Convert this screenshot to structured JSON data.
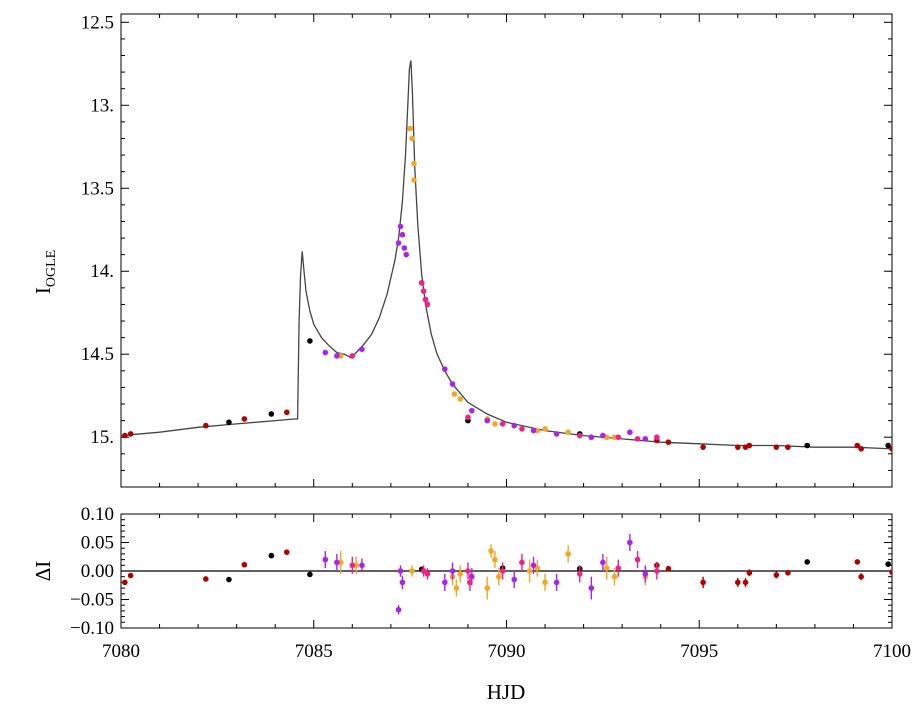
{
  "chart_data": [
    {
      "type": "scatter",
      "title": "",
      "xlabel": "HJD",
      "ylabel": "I",
      "ylabel_sub": "OGLE",
      "xlim": [
        7080,
        7100
      ],
      "ylim": [
        15.3,
        12.45
      ],
      "y_inverted": true,
      "x_ticks": [
        "7080",
        "7085",
        "7090",
        "7095",
        "7100"
      ],
      "y_ticks": [
        {
          "value": 12.5,
          "label": "12.5"
        },
        {
          "value": 13.0,
          "label": "13."
        },
        {
          "value": 13.5,
          "label": "13.5"
        },
        {
          "value": 14.0,
          "label": "14."
        },
        {
          "value": 14.5,
          "label": "14.5"
        },
        {
          "value": 15.0,
          "label": "15."
        }
      ],
      "grid": false,
      "series": [
        {
          "color": "#000000",
          "points": [
            [
              7082.8,
              14.91
            ],
            [
              7083.9,
              14.86
            ],
            [
              7084.9,
              14.42
            ],
            [
              7087.8,
              14.07
            ],
            [
              7089.0,
              14.9
            ],
            [
              7091.9,
              14.98
            ],
            [
              7097.8,
              15.05
            ],
            [
              7099.9,
              15.05
            ]
          ]
        },
        {
          "color": "#b00000",
          "points": [
            [
              7080.1,
              14.99
            ],
            [
              7080.25,
              14.98
            ],
            [
              7082.2,
              14.93
            ],
            [
              7083.2,
              14.89
            ],
            [
              7084.3,
              14.85
            ],
            [
              7093.9,
              15.02
            ],
            [
              7094.2,
              15.03
            ],
            [
              7095.1,
              15.06
            ],
            [
              7096.0,
              15.06
            ],
            [
              7096.2,
              15.06
            ],
            [
              7096.3,
              15.05
            ],
            [
              7097.0,
              15.06
            ],
            [
              7097.3,
              15.06
            ],
            [
              7099.1,
              15.05
            ],
            [
              7099.2,
              15.07
            ],
            [
              7100.0,
              15.07
            ]
          ]
        },
        {
          "color": "#f5a623",
          "points": [
            [
              7085.7,
              14.51
            ],
            [
              7087.5,
              13.14
            ],
            [
              7087.55,
              13.2
            ],
            [
              7087.6,
              13.35
            ],
            [
              7087.6,
              13.45
            ],
            [
              7088.65,
              14.74
            ],
            [
              7088.8,
              14.77
            ],
            [
              7089.5,
              14.89
            ],
            [
              7089.7,
              14.92
            ],
            [
              7090.8,
              14.96
            ],
            [
              7091.0,
              14.95
            ],
            [
              7091.6,
              14.97
            ],
            [
              7092.6,
              15.0
            ],
            [
              7092.8,
              15.0
            ],
            [
              7093.6,
              15.01
            ]
          ]
        },
        {
          "color": "#aa22ee",
          "points": [
            [
              7085.3,
              14.49
            ],
            [
              7085.6,
              14.51
            ],
            [
              7086.25,
              14.47
            ],
            [
              7087.2,
              13.83
            ],
            [
              7087.25,
              13.73
            ],
            [
              7087.3,
              13.78
            ],
            [
              7087.35,
              13.86
            ],
            [
              7087.4,
              13.9
            ],
            [
              7088.4,
              14.59
            ],
            [
              7088.6,
              14.68
            ],
            [
              7089.1,
              14.84
            ],
            [
              7089.5,
              14.9
            ],
            [
              7090.2,
              14.93
            ],
            [
              7090.7,
              14.96
            ],
            [
              7091.3,
              14.98
            ],
            [
              7092.2,
              15.0
            ],
            [
              7092.5,
              14.99
            ],
            [
              7093.2,
              14.97
            ],
            [
              7093.6,
              15.01
            ]
          ]
        },
        {
          "color": "#ee2288",
          "points": [
            [
              7086.0,
              14.51
            ],
            [
              7087.8,
              14.07
            ],
            [
              7087.85,
              14.12
            ],
            [
              7087.9,
              14.17
            ],
            [
              7087.95,
              14.2
            ],
            [
              7089.0,
              14.88
            ],
            [
              7089.9,
              14.92
            ],
            [
              7090.4,
              14.95
            ],
            [
              7091.9,
              14.99
            ],
            [
              7092.9,
              15.0
            ],
            [
              7093.4,
              15.01
            ],
            [
              7093.9,
              15.0
            ]
          ]
        }
      ],
      "model_curve": [
        [
          7080.0,
          14.99
        ],
        [
          7081,
          14.97
        ],
        [
          7082,
          14.94
        ],
        [
          7083,
          14.92
        ],
        [
          7084,
          14.9
        ],
        [
          7084.5,
          14.89
        ],
        [
          7084.58,
          14.89
        ],
        [
          7084.62,
          14.3
        ],
        [
          7084.66,
          14.02
        ],
        [
          7084.7,
          13.88
        ],
        [
          7084.74,
          13.98
        ],
        [
          7084.8,
          14.12
        ],
        [
          7084.9,
          14.24
        ],
        [
          7085.0,
          14.32
        ],
        [
          7085.2,
          14.4
        ],
        [
          7085.4,
          14.45
        ],
        [
          7085.6,
          14.49
        ],
        [
          7085.8,
          14.5
        ],
        [
          7085.95,
          14.52
        ],
        [
          7086.1,
          14.49
        ],
        [
          7086.3,
          14.44
        ],
        [
          7086.5,
          14.38
        ],
        [
          7086.7,
          14.28
        ],
        [
          7086.9,
          14.14
        ],
        [
          7087.1,
          13.94
        ],
        [
          7087.2,
          13.8
        ],
        [
          7087.3,
          13.58
        ],
        [
          7087.38,
          13.3
        ],
        [
          7087.44,
          13.0
        ],
        [
          7087.48,
          12.78
        ],
        [
          7087.52,
          12.73
        ],
        [
          7087.56,
          12.92
        ],
        [
          7087.62,
          13.38
        ],
        [
          7087.7,
          13.72
        ],
        [
          7087.8,
          14.02
        ],
        [
          7087.9,
          14.2
        ],
        [
          7088.05,
          14.38
        ],
        [
          7088.2,
          14.5
        ],
        [
          7088.4,
          14.6
        ],
        [
          7088.6,
          14.68
        ],
        [
          7089.0,
          14.79
        ],
        [
          7089.5,
          14.86
        ],
        [
          7090,
          14.91
        ],
        [
          7091,
          14.96
        ],
        [
          7092,
          14.99
        ],
        [
          7093,
          15.01
        ],
        [
          7094,
          15.03
        ],
        [
          7095,
          15.04
        ],
        [
          7096,
          15.05
        ],
        [
          7097,
          15.05
        ],
        [
          7098,
          15.06
        ],
        [
          7099,
          15.06
        ],
        [
          7100,
          15.07
        ]
      ]
    },
    {
      "type": "scatter",
      "title": "",
      "xlabel": "HJD",
      "ylabel": "ΔI",
      "xlim": [
        7080,
        7100
      ],
      "ylim": [
        -0.1,
        0.1
      ],
      "x_ticks": [
        "7080",
        "7085",
        "7090",
        "7095",
        "7100"
      ],
      "y_ticks": [
        {
          "value": 0.1,
          "label": "0.10"
        },
        {
          "value": 0.05,
          "label": "0.05"
        },
        {
          "value": 0.0,
          "label": "0.00"
        },
        {
          "value": -0.05,
          "label": "−0.05"
        },
        {
          "value": -0.1,
          "label": "−0.10"
        }
      ],
      "zero_line": true,
      "grid": false,
      "series": [
        {
          "color": "#000000",
          "points": [
            [
              7082.8,
              -0.015,
              0.003
            ],
            [
              7083.9,
              0.027,
              0.003
            ],
            [
              7084.9,
              -0.006,
              0.003
            ],
            [
              7087.8,
              0.003,
              0.003
            ],
            [
              7089.9,
              0.005,
              0.004
            ],
            [
              7091.9,
              0.004,
              0.003
            ],
            [
              7097.8,
              0.016,
              0.003
            ],
            [
              7099.9,
              0.012,
              0.003
            ]
          ]
        },
        {
          "color": "#b00000",
          "points": [
            [
              7080.1,
              -0.02,
              0.004
            ],
            [
              7080.25,
              -0.008,
              0.004
            ],
            [
              7082.2,
              -0.014,
              0.004
            ],
            [
              7083.2,
              0.011,
              0.004
            ],
            [
              7084.3,
              0.033,
              0.004
            ],
            [
              7093.9,
              0.01,
              0.006
            ],
            [
              7094.2,
              0.004,
              0.005
            ],
            [
              7095.1,
              -0.02,
              0.01
            ],
            [
              7096.0,
              -0.02,
              0.008
            ],
            [
              7096.2,
              -0.02,
              0.008
            ],
            [
              7096.3,
              -0.003,
              0.006
            ],
            [
              7097.0,
              -0.007,
              0.006
            ],
            [
              7097.3,
              -0.003,
              0.005
            ],
            [
              7099.1,
              0.016,
              0.004
            ],
            [
              7099.2,
              -0.01,
              0.006
            ],
            [
              7100.0,
              -0.002,
              0.004
            ]
          ]
        },
        {
          "color": "#f5a623",
          "points": [
            [
              7085.7,
              0.015,
              0.02
            ],
            [
              7086.1,
              0.01,
              0.015
            ],
            [
              7087.55,
              0.0,
              0.01
            ],
            [
              7088.6,
              -0.01,
              0.015
            ],
            [
              7088.7,
              -0.03,
              0.015
            ],
            [
              7088.8,
              -0.005,
              0.015
            ],
            [
              7089.5,
              -0.03,
              0.02
            ],
            [
              7089.6,
              0.035,
              0.012
            ],
            [
              7089.7,
              0.02,
              0.015
            ],
            [
              7089.8,
              -0.01,
              0.015
            ],
            [
              7090.6,
              0.0,
              0.02
            ],
            [
              7090.8,
              0.005,
              0.015
            ],
            [
              7091.0,
              -0.02,
              0.015
            ],
            [
              7091.6,
              0.03,
              0.015
            ],
            [
              7092.6,
              0.005,
              0.02
            ],
            [
              7092.8,
              -0.01,
              0.015
            ],
            [
              7093.6,
              -0.01,
              0.015
            ]
          ]
        },
        {
          "color": "#aa22ee",
          "points": [
            [
              7085.3,
              0.02,
              0.015
            ],
            [
              7085.6,
              0.015,
              0.015
            ],
            [
              7086.25,
              0.01,
              0.012
            ],
            [
              7087.2,
              -0.068,
              0.008
            ],
            [
              7087.25,
              0.0,
              0.01
            ],
            [
              7087.3,
              -0.02,
              0.012
            ],
            [
              7088.4,
              -0.02,
              0.015
            ],
            [
              7088.6,
              0.0,
              0.015
            ],
            [
              7089.1,
              -0.01,
              0.015
            ],
            [
              7090.2,
              -0.015,
              0.015
            ],
            [
              7090.7,
              0.01,
              0.015
            ],
            [
              7091.3,
              -0.02,
              0.015
            ],
            [
              7092.2,
              -0.03,
              0.02
            ],
            [
              7092.5,
              0.015,
              0.015
            ],
            [
              7093.2,
              0.05,
              0.015
            ],
            [
              7093.6,
              -0.005,
              0.015
            ]
          ]
        },
        {
          "color": "#ee2288",
          "points": [
            [
              7086.0,
              0.01,
              0.015
            ],
            [
              7087.85,
              0.0,
              0.01
            ],
            [
              7087.95,
              -0.005,
              0.01
            ],
            [
              7089.0,
              0.0,
              0.015
            ],
            [
              7089.05,
              -0.02,
              0.015
            ],
            [
              7089.9,
              0.0,
              0.015
            ],
            [
              7090.4,
              0.015,
              0.015
            ],
            [
              7091.9,
              -0.005,
              0.015
            ],
            [
              7092.9,
              0.005,
              0.015
            ],
            [
              7093.4,
              0.02,
              0.015
            ],
            [
              7093.9,
              0.0,
              0.015
            ]
          ]
        }
      ]
    }
  ]
}
